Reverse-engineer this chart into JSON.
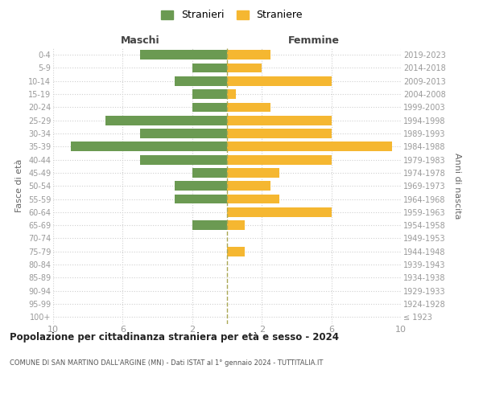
{
  "age_groups": [
    "100+",
    "95-99",
    "90-94",
    "85-89",
    "80-84",
    "75-79",
    "70-74",
    "65-69",
    "60-64",
    "55-59",
    "50-54",
    "45-49",
    "40-44",
    "35-39",
    "30-34",
    "25-29",
    "20-24",
    "15-19",
    "10-14",
    "5-9",
    "0-4"
  ],
  "birth_years": [
    "≤ 1923",
    "1924-1928",
    "1929-1933",
    "1934-1938",
    "1939-1943",
    "1944-1948",
    "1949-1953",
    "1954-1958",
    "1959-1963",
    "1964-1968",
    "1969-1973",
    "1974-1978",
    "1979-1983",
    "1984-1988",
    "1989-1993",
    "1994-1998",
    "1999-2003",
    "2004-2008",
    "2009-2013",
    "2014-2018",
    "2019-2023"
  ],
  "maschi": [
    0,
    0,
    0,
    0,
    0,
    0,
    0,
    2,
    0,
    3,
    3,
    2,
    5,
    9,
    5,
    7,
    2,
    2,
    3,
    2,
    5
  ],
  "femmine": [
    0,
    0,
    0,
    0,
    0,
    1,
    0,
    1,
    6,
    3,
    2.5,
    3,
    6,
    9.5,
    6,
    6,
    2.5,
    0.5,
    6,
    2,
    2.5
  ],
  "stranieri_color": "#6b9a52",
  "straniere_color": "#f5b731",
  "title": "Popolazione per cittadinanza straniera per età e sesso - 2024",
  "subtitle": "COMUNE DI SAN MARTINO DALL'ARGINE (MN) - Dati ISTAT al 1° gennaio 2024 - TUTTITALIA.IT",
  "xlabel_left": "Maschi",
  "xlabel_right": "Femmine",
  "ylabel_left": "Fasce di età",
  "ylabel_right": "Anni di nascita",
  "xlim": 10,
  "legend_stranieri": "Stranieri",
  "legend_straniere": "Straniere",
  "bg_color": "#ffffff",
  "grid_color": "#d0d0d0",
  "axis_label_color": "#666666",
  "tick_label_color": "#999999",
  "bar_height": 0.72
}
